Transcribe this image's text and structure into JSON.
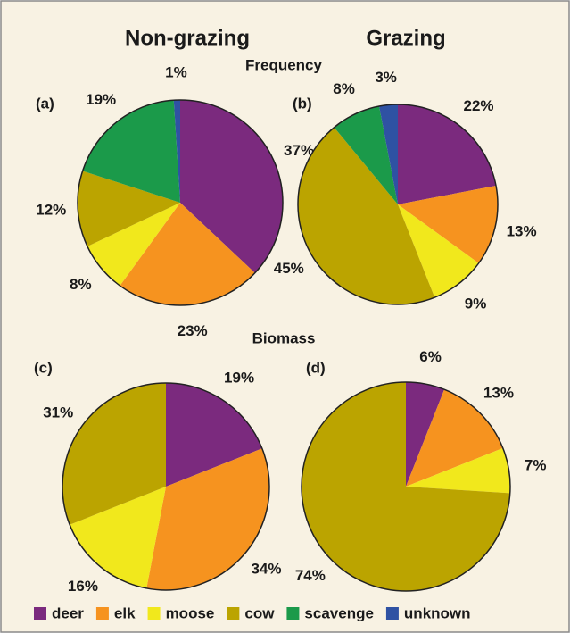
{
  "column_titles": [
    "Non-grazing",
    "Grazing"
  ],
  "row_titles": [
    "Frequency",
    "Biomass"
  ],
  "chart_data": [
    {
      "type": "pie",
      "label": "(a)",
      "categories": [
        "deer",
        "elk",
        "moose",
        "cow",
        "scavenge",
        "unknown"
      ],
      "values": [
        37,
        23,
        8,
        12,
        19,
        1
      ],
      "value_labels": [
        "37%",
        "23%",
        "8%",
        "12%",
        "19%",
        "1%"
      ],
      "colors": [
        "#7b2a7e",
        "#f6931f",
        "#f1e81c",
        "#bba400",
        "#1b9a4a",
        "#2f52a3"
      ]
    },
    {
      "type": "pie",
      "label": "(b)",
      "categories": [
        "deer",
        "elk",
        "moose",
        "cow",
        "scavenge",
        "unknown"
      ],
      "values": [
        22,
        13,
        9,
        45,
        8,
        3
      ],
      "value_labels": [
        "22%",
        "13%",
        "9%",
        "45%",
        "8%",
        "3%"
      ],
      "colors": [
        "#7b2a7e",
        "#f6931f",
        "#f1e81c",
        "#bba400",
        "#1b9a4a",
        "#2f52a3"
      ]
    },
    {
      "type": "pie",
      "label": "(c)",
      "categories": [
        "deer",
        "elk",
        "moose",
        "cow"
      ],
      "values": [
        19,
        34,
        16,
        31
      ],
      "value_labels": [
        "19%",
        "34%",
        "16%",
        "31%"
      ],
      "colors": [
        "#7b2a7e",
        "#f6931f",
        "#f1e81c",
        "#bba400"
      ]
    },
    {
      "type": "pie",
      "label": "(d)",
      "categories": [
        "deer",
        "elk",
        "moose",
        "cow"
      ],
      "values": [
        6,
        13,
        7,
        74
      ],
      "value_labels": [
        "6%",
        "13%",
        "7%",
        "74%"
      ],
      "colors": [
        "#7b2a7e",
        "#f6931f",
        "#f1e81c",
        "#bba400"
      ]
    }
  ]
}
